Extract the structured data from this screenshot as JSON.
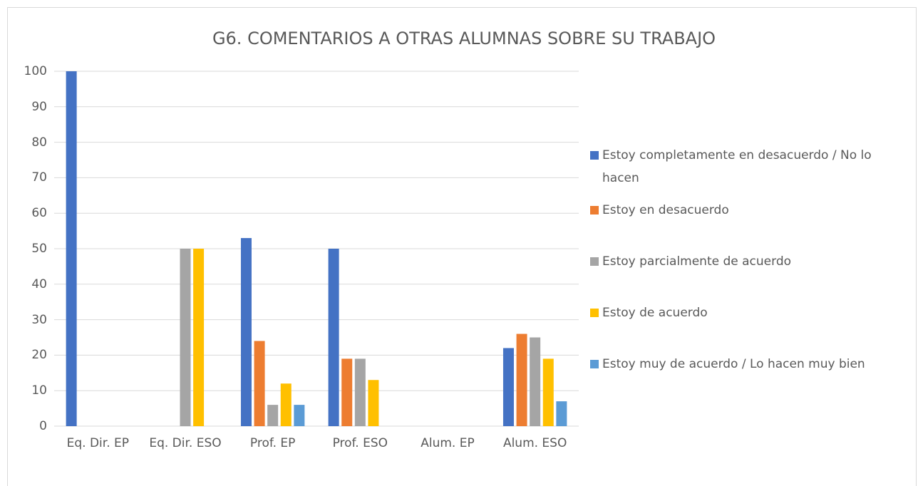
{
  "chart_data": {
    "type": "bar",
    "title": "G6. COMENTARIOS A OTRAS ALUMNAS SOBRE SU TRABAJO",
    "categories": [
      "Eq. Dir. EP",
      "Eq. Dir. ESO",
      "Prof. EP",
      "Prof. ESO",
      "Alum. EP",
      "Alum. ESO"
    ],
    "series": [
      {
        "name": "Estoy completamente en desacuerdo / No lo hacen",
        "color": "#4472c4",
        "values": [
          100,
          0,
          53,
          50,
          0,
          22
        ]
      },
      {
        "name": "Estoy en desacuerdo",
        "color": "#ed7d31",
        "values": [
          0,
          0,
          24,
          19,
          0,
          26
        ]
      },
      {
        "name": "Estoy parcialmente de acuerdo",
        "color": "#a5a5a5",
        "values": [
          0,
          50,
          6,
          19,
          0,
          25
        ]
      },
      {
        "name": "Estoy de acuerdo",
        "color": "#ffc000",
        "values": [
          0,
          50,
          12,
          13,
          0,
          19
        ]
      },
      {
        "name": "Estoy muy de acuerdo / Lo hacen muy bien",
        "color": "#5b9bd5",
        "values": [
          0,
          0,
          6,
          0,
          0,
          7
        ]
      }
    ],
    "ylim": [
      0,
      100
    ],
    "yticks": [
      0,
      10,
      20,
      30,
      40,
      50,
      60,
      70,
      80,
      90,
      100
    ],
    "grid": true,
    "legend": "right"
  }
}
